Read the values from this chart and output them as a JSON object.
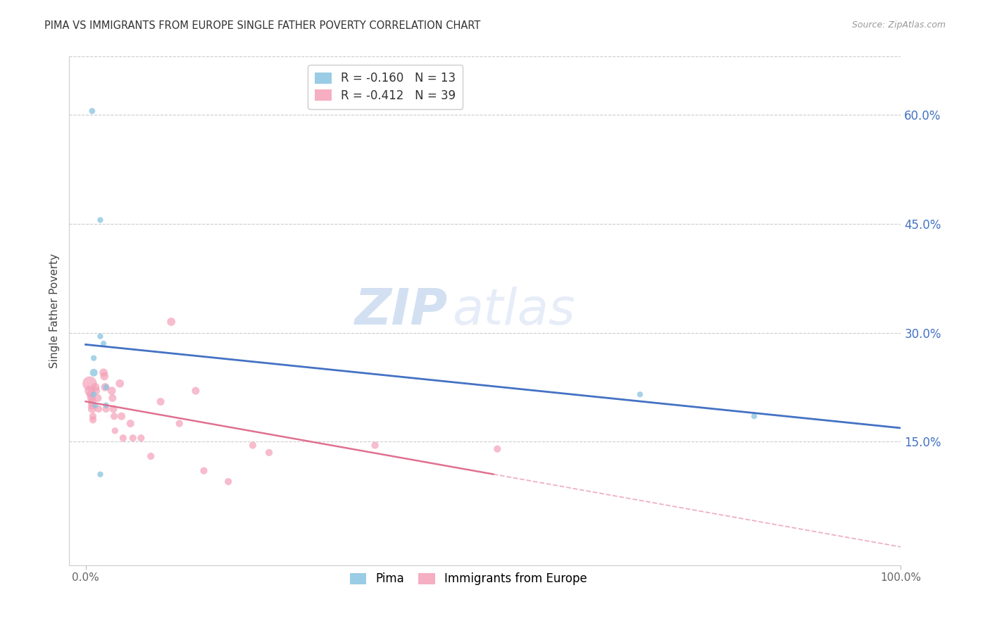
{
  "title": "PIMA VS IMMIGRANTS FROM EUROPE SINGLE FATHER POVERTY CORRELATION CHART",
  "source": "Source: ZipAtlas.com",
  "ylabel": "Single Father Poverty",
  "right_ytick_labels": [
    "60.0%",
    "45.0%",
    "30.0%",
    "15.0%"
  ],
  "right_ytick_values": [
    0.6,
    0.45,
    0.3,
    0.15
  ],
  "xlim": [
    -0.02,
    1.0
  ],
  "ylim": [
    -0.02,
    0.68
  ],
  "xtick_labels": [
    "0.0%",
    "100.0%"
  ],
  "xtick_values": [
    0.0,
    1.0
  ],
  "pima_color": "#89c4e1",
  "europe_color": "#f4a0b8",
  "pima_line_color": "#4472c4",
  "europe_line_color": "#e07090",
  "pima_R": -0.16,
  "pima_N": 13,
  "europe_R": -0.412,
  "europe_N": 39,
  "watermark_zip": "ZIP",
  "watermark_atlas": "atlas",
  "pima_x": [
    0.008,
    0.018,
    0.018,
    0.022,
    0.01,
    0.01,
    0.01,
    0.012,
    0.025,
    0.025,
    0.018,
    0.68,
    0.82
  ],
  "pima_y": [
    0.605,
    0.455,
    0.295,
    0.285,
    0.265,
    0.245,
    0.215,
    0.2,
    0.225,
    0.2,
    0.105,
    0.215,
    0.185
  ],
  "pima_sizes": [
    220,
    200,
    200,
    200,
    200,
    350,
    200,
    200,
    200,
    200,
    200,
    200,
    200
  ],
  "europe_x": [
    0.005,
    0.005,
    0.006,
    0.007,
    0.008,
    0.008,
    0.008,
    0.009,
    0.009,
    0.012,
    0.013,
    0.015,
    0.016,
    0.022,
    0.023,
    0.024,
    0.025,
    0.032,
    0.033,
    0.034,
    0.035,
    0.036,
    0.042,
    0.044,
    0.046,
    0.055,
    0.058,
    0.068,
    0.08,
    0.092,
    0.105,
    0.115,
    0.135,
    0.145,
    0.175,
    0.205,
    0.225,
    0.355,
    0.505
  ],
  "europe_y": [
    0.23,
    0.22,
    0.215,
    0.21,
    0.205,
    0.2,
    0.195,
    0.185,
    0.18,
    0.225,
    0.22,
    0.21,
    0.195,
    0.245,
    0.24,
    0.225,
    0.195,
    0.22,
    0.21,
    0.195,
    0.185,
    0.165,
    0.23,
    0.185,
    0.155,
    0.175,
    0.155,
    0.155,
    0.13,
    0.205,
    0.315,
    0.175,
    0.22,
    0.11,
    0.095,
    0.145,
    0.135,
    0.145,
    0.14
  ],
  "europe_sizes": [
    1200,
    600,
    400,
    400,
    400,
    400,
    400,
    300,
    300,
    400,
    350,
    350,
    300,
    400,
    400,
    400,
    300,
    400,
    350,
    350,
    300,
    250,
    400,
    350,
    300,
    350,
    300,
    300,
    300,
    350,
    400,
    300,
    350,
    300,
    300,
    300,
    300,
    300,
    300
  ],
  "pima_line_x0": 0.0,
  "pima_line_x1": 1.0,
  "europe_line_solid_x1": 0.5,
  "europe_line_dash_x1": 1.0,
  "grid_color": "#cccccc",
  "spine_color": "#cccccc"
}
